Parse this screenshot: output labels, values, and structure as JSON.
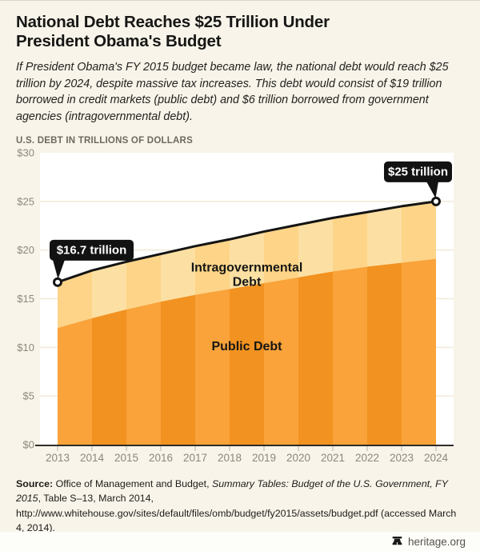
{
  "header": {
    "title_line1": "National Debt Reaches $25 Trillion Under",
    "title_line2": "President Obama's Budget",
    "subtitle": "If President Obama's FY 2015 budget became law, the national debt would reach $25 trillion by 2024, despite massive tax increases. This debt would consist of $19 trillion borrowed in credit markets (public debt) and $6 trillion borrowed from government agencies (intragovernmental debt)."
  },
  "chart_heading": "U.S. DEBT IN TRILLIONS OF DOLLARS",
  "chart_data": {
    "type": "area",
    "stacked": true,
    "title": "U.S. Debt in Trillions of Dollars",
    "x": [
      2013,
      2014,
      2015,
      2016,
      2017,
      2018,
      2019,
      2020,
      2021,
      2022,
      2023,
      2024
    ],
    "series": [
      {
        "name": "Public Debt",
        "values": [
          12.0,
          13.0,
          13.9,
          14.7,
          15.4,
          16.0,
          16.6,
          17.2,
          17.8,
          18.3,
          18.7,
          19.1
        ],
        "band_colors": [
          "#f9a33a",
          "#f29220"
        ]
      },
      {
        "name": "Intragovernmental Debt",
        "values": [
          4.7,
          4.9,
          4.9,
          4.9,
          5.0,
          5.1,
          5.3,
          5.4,
          5.5,
          5.6,
          5.8,
          5.9
        ],
        "band_colors": [
          "#fdd488",
          "#fce0a3"
        ]
      }
    ],
    "totals": [
      16.7,
      17.9,
      18.8,
      19.6,
      20.4,
      21.1,
      21.9,
      22.6,
      23.3,
      23.9,
      24.5,
      25.0
    ],
    "total_line_color": "#141414",
    "ylim": [
      0,
      30
    ],
    "ytick_step": 5,
    "yticks": [
      "$0",
      "$5",
      "$10",
      "$15",
      "$20",
      "$25",
      "$30"
    ],
    "grid": true,
    "gridline_color": "#f1ead9",
    "plot_bg": "#ffffff",
    "axis_label_color": "#8d8879",
    "annotations": [
      {
        "text": "$16.7 trillion",
        "x": 2013,
        "y": 16.7
      },
      {
        "text": "$25 trillion",
        "x": 2024,
        "y": 25.0
      }
    ],
    "area_labels": [
      {
        "lines": [
          "Intragovernmental",
          "Debt"
        ],
        "x": 2018.5,
        "y": 17.8
      },
      {
        "lines": [
          "Public Debt"
        ],
        "x": 2018.5,
        "y": 9.7
      }
    ]
  },
  "source": {
    "label": "Source:",
    "text_pre": " Office of Management and Budget, ",
    "text_italic": "Summary Tables: Budget of the U.S. Government, FY 2015",
    "text_post": ", Table S–13, March 2014, http://www.whitehouse.gov/sites/default/files/omb/budget/fy2015/assets/budget.pdf (accessed March 4, 2014)."
  },
  "footer": {
    "brand": "heritage.org"
  }
}
